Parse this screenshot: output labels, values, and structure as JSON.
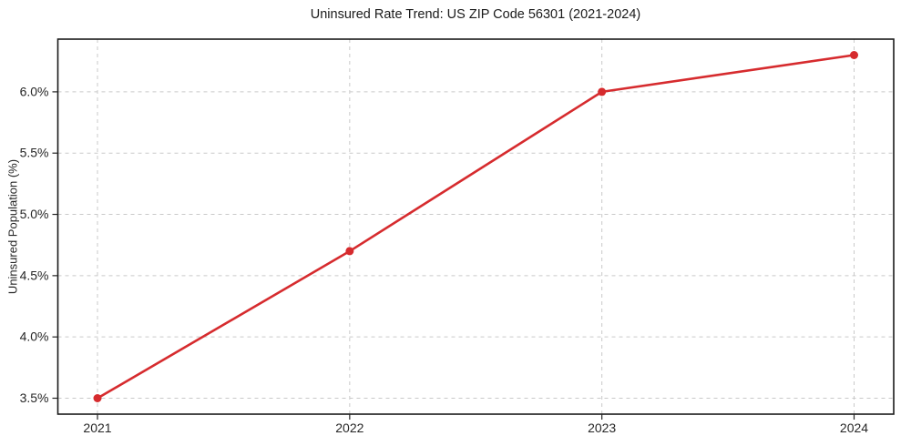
{
  "chart_data": {
    "type": "line",
    "title": "Uninsured Rate Trend: US ZIP Code 56301 (2021-2024)",
    "xlabel": "",
    "ylabel": "Uninsured Population (%)",
    "categories": [
      "2021",
      "2022",
      "2023",
      "2024"
    ],
    "values": [
      3.5,
      4.7,
      6.0,
      6.3
    ],
    "y_ticks": [
      3.5,
      4.0,
      4.5,
      5.0,
      5.5,
      6.0
    ],
    "y_tick_labels": [
      "3.5%",
      "4.0%",
      "4.5%",
      "5.0%",
      "5.5%",
      "6.0%"
    ],
    "ylim": [
      3.37,
      6.43
    ],
    "grid": true,
    "grid_style": "dashed",
    "legend": false,
    "line_width": 2.6,
    "marker": "circle",
    "marker_radius": 4.5,
    "colors": {
      "line": "#d62b2e",
      "marker": "#d62b2e",
      "grid": "#c9c9c9",
      "border": "#1a1a1a",
      "text": "#262626",
      "background": "#ffffff"
    }
  }
}
